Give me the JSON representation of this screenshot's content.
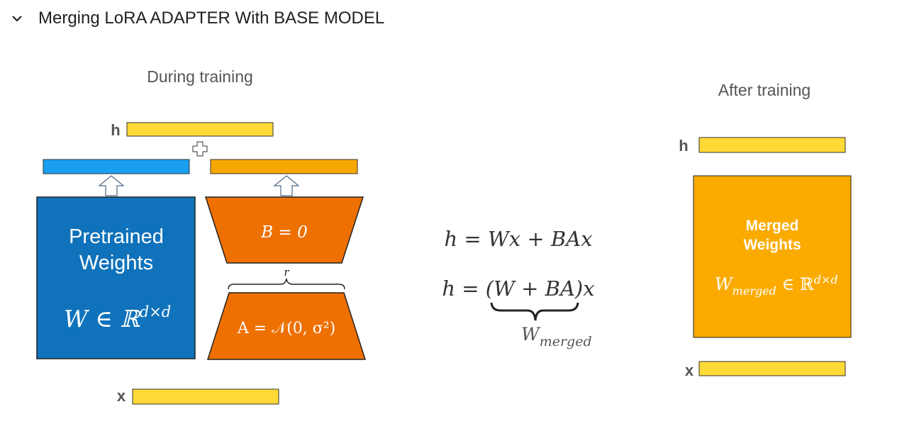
{
  "section": {
    "title": "Merging LoRA ADAPTER With BASE MODEL",
    "toggle_icon": "chevron-down-icon"
  },
  "during": {
    "title": "During training",
    "h_label": "h",
    "x_label": "x",
    "pretrained_line1": "Pretrained",
    "pretrained_line2": "Weights",
    "w_formula": "W ∈ ℝ",
    "w_sup": "d×d",
    "b_formula": "B = 0",
    "a_formula": "A = 𝒩(0, σ²)",
    "rank_label": "r",
    "plus_icon": "plus-icon",
    "arrow_icon": "up-arrow-icon"
  },
  "equations": {
    "line1": "h = Wx + BAx",
    "line2": "h = (W + BA)x",
    "w_merged_base": "W",
    "w_merged_sub": "merged"
  },
  "after": {
    "title": "After training",
    "h_label": "h",
    "x_label": "x",
    "merged_line1": "Merged",
    "merged_line2": "Weights",
    "formula_base": "W",
    "formula_sub": "merged",
    "formula_rest": " ∈ ℝ",
    "formula_sup": "d×d"
  },
  "colors": {
    "yellow": "#ffd936",
    "blue_bar": "#1a9ff0",
    "orange_bar": "#f7a800",
    "pretrained": "#0f72bb",
    "lora": "#ee7000",
    "merged": "#fbab00"
  }
}
